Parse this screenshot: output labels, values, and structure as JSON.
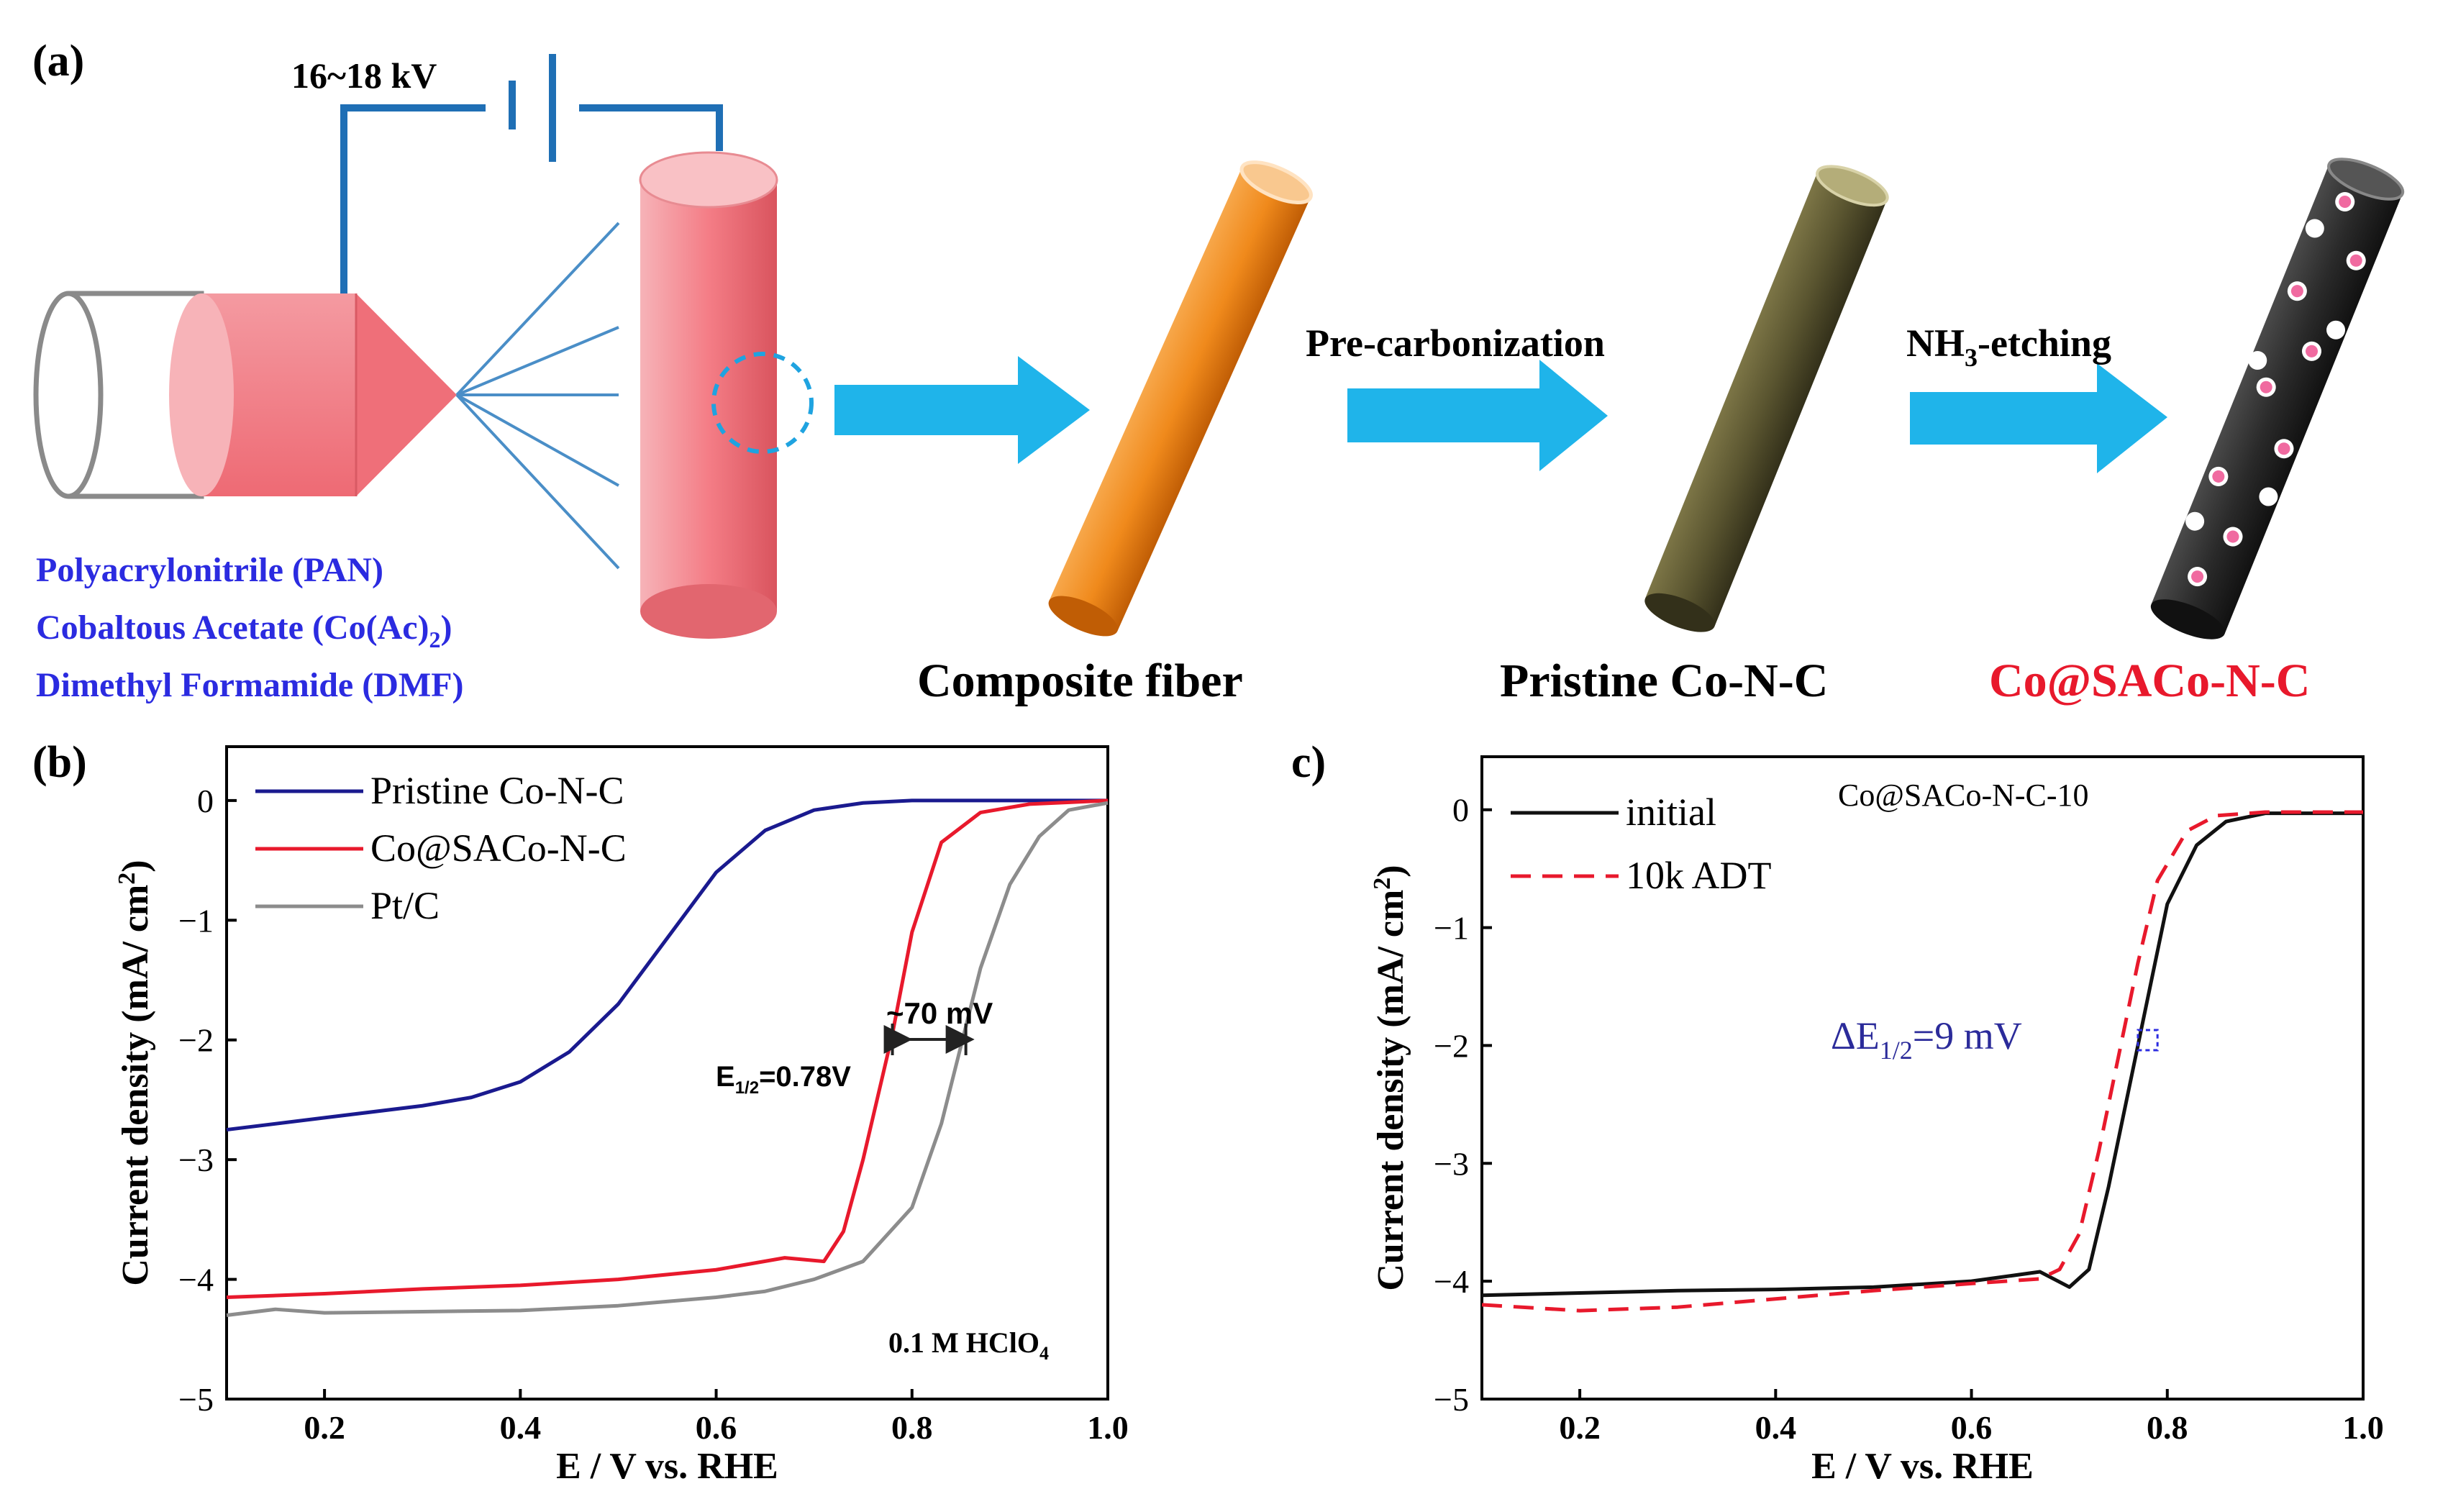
{
  "panel_a": {
    "label": "(a)",
    "voltage": "16~18 kV",
    "materials": [
      "Polyacrylonitrile (PAN)",
      "Cobaltous Acetate (Co(Ac)",
      "Dimethyl Formamide (DMF)"
    ],
    "materials_sub": "2",
    "materials_close": ")",
    "step1_label": "Composite fiber",
    "arrow2_label": "Pre-carbonization",
    "step2_label": "Pristine Co-N-C",
    "arrow3_label_pre": "NH",
    "arrow3_label_sub": "3",
    "arrow3_label_post": "-etching",
    "step3_label": "Co@SACo-N-C",
    "colors": {
      "arrow": "#1fb4ea",
      "syringe": "#f27b82",
      "pink_fiber": "#f49aa1",
      "orange_fiber": "#f08a1c",
      "olive_fiber": "#5a5530",
      "black_fiber": "#2a2a2a",
      "material_text": "#2b2be0",
      "red_text": "#e8192c",
      "wire": "#1f6fb5"
    }
  },
  "chart_data": [
    {
      "panel": "(b)",
      "type": "line",
      "xlabel": "E / V vs. RHE",
      "ylabel": "Current density (mA/ cm",
      "ylabel_sup": "2",
      "ylabel_close": ")",
      "xlim": [
        0.1,
        1.0
      ],
      "ylim": [
        -5,
        0.45
      ],
      "xticks": [
        "0.2",
        "0.4",
        "0.6",
        "0.8",
        "1.0"
      ],
      "xtick_values": [
        0.2,
        0.4,
        0.6,
        0.8,
        1.0
      ],
      "yticks": [
        "0",
        "−1",
        "−2",
        "−3",
        "−4",
        "−5"
      ],
      "ytick_values": [
        0,
        -1,
        -2,
        -3,
        -4,
        -5
      ],
      "annotations": {
        "e_half": "E",
        "e_half_sub": "1/2",
        "e_half_value": "=0.78V",
        "delta": "~70 mV",
        "electrolyte": "0.1 M HClO",
        "electrolyte_sub": "4"
      },
      "series": [
        {
          "name": "Pristine  Co-N-C",
          "color": "#1a1a8f",
          "x": [
            0.1,
            0.2,
            0.3,
            0.35,
            0.4,
            0.45,
            0.5,
            0.55,
            0.6,
            0.65,
            0.7,
            0.75,
            0.8,
            0.9,
            1.0
          ],
          "y": [
            -2.75,
            -2.65,
            -2.55,
            -2.48,
            -2.35,
            -2.1,
            -1.7,
            -1.15,
            -0.6,
            -0.25,
            -0.08,
            -0.02,
            0.0,
            0.0,
            0.0
          ]
        },
        {
          "name": "Co@SACo-N-C",
          "color": "#e8192c",
          "x": [
            0.1,
            0.2,
            0.3,
            0.4,
            0.5,
            0.6,
            0.67,
            0.71,
            0.73,
            0.75,
            0.77,
            0.78,
            0.8,
            0.83,
            0.87,
            0.92,
            1.0
          ],
          "y": [
            -4.15,
            -4.12,
            -4.08,
            -4.05,
            -4.0,
            -3.92,
            -3.82,
            -3.85,
            -3.6,
            -3.0,
            -2.3,
            -1.95,
            -1.1,
            -0.35,
            -0.1,
            -0.03,
            0.0
          ]
        },
        {
          "name": "Pt/C",
          "color": "#8c8c8c",
          "x": [
            0.1,
            0.15,
            0.2,
            0.3,
            0.4,
            0.5,
            0.6,
            0.65,
            0.7,
            0.75,
            0.8,
            0.83,
            0.85,
            0.87,
            0.9,
            0.93,
            0.96,
            1.0
          ],
          "y": [
            -4.3,
            -4.25,
            -4.28,
            -4.27,
            -4.26,
            -4.22,
            -4.15,
            -4.1,
            -4.0,
            -3.85,
            -3.4,
            -2.7,
            -2.05,
            -1.4,
            -0.7,
            -0.3,
            -0.08,
            -0.02
          ]
        }
      ]
    },
    {
      "panel": "c)",
      "type": "line",
      "title": "Co@SACo-N-C-10",
      "xlabel": "E / V vs. RHE",
      "ylabel": "Current density (mA/ cm",
      "ylabel_sup": "2",
      "ylabel_close": ")",
      "xlim": [
        0.1,
        1.0
      ],
      "ylim": [
        -5,
        0.45
      ],
      "xticks": [
        "0.2",
        "0.4",
        "0.6",
        "0.8",
        "1.0"
      ],
      "xtick_values": [
        0.2,
        0.4,
        0.6,
        0.8,
        1.0
      ],
      "yticks": [
        "0",
        "−1",
        "−2",
        "−3",
        "−4",
        "−5"
      ],
      "ytick_values": [
        0,
        -1,
        -2,
        -3,
        -4,
        -5
      ],
      "annotations": {
        "delta_pre": "ΔE",
        "delta_sub": "1/2",
        "delta_post": "=9 mV"
      },
      "series": [
        {
          "name": "initial",
          "color": "#111111",
          "dash": false,
          "x": [
            0.1,
            0.2,
            0.3,
            0.4,
            0.5,
            0.6,
            0.67,
            0.7,
            0.72,
            0.74,
            0.76,
            0.78,
            0.8,
            0.83,
            0.86,
            0.9,
            1.0
          ],
          "y": [
            -4.12,
            -4.1,
            -4.08,
            -4.07,
            -4.05,
            -4.0,
            -3.92,
            -4.05,
            -3.9,
            -3.2,
            -2.4,
            -1.6,
            -0.8,
            -0.3,
            -0.1,
            -0.03,
            -0.03
          ]
        },
        {
          "name": "10k ADT",
          "color": "#e8192c",
          "dash": true,
          "x": [
            0.1,
            0.2,
            0.3,
            0.4,
            0.5,
            0.6,
            0.67,
            0.69,
            0.71,
            0.73,
            0.75,
            0.77,
            0.79,
            0.82,
            0.85,
            0.9,
            1.0
          ],
          "y": [
            -4.2,
            -4.25,
            -4.22,
            -4.15,
            -4.08,
            -4.02,
            -3.98,
            -3.9,
            -3.6,
            -2.9,
            -2.1,
            -1.3,
            -0.6,
            -0.18,
            -0.05,
            -0.02,
            -0.02
          ]
        }
      ]
    }
  ]
}
